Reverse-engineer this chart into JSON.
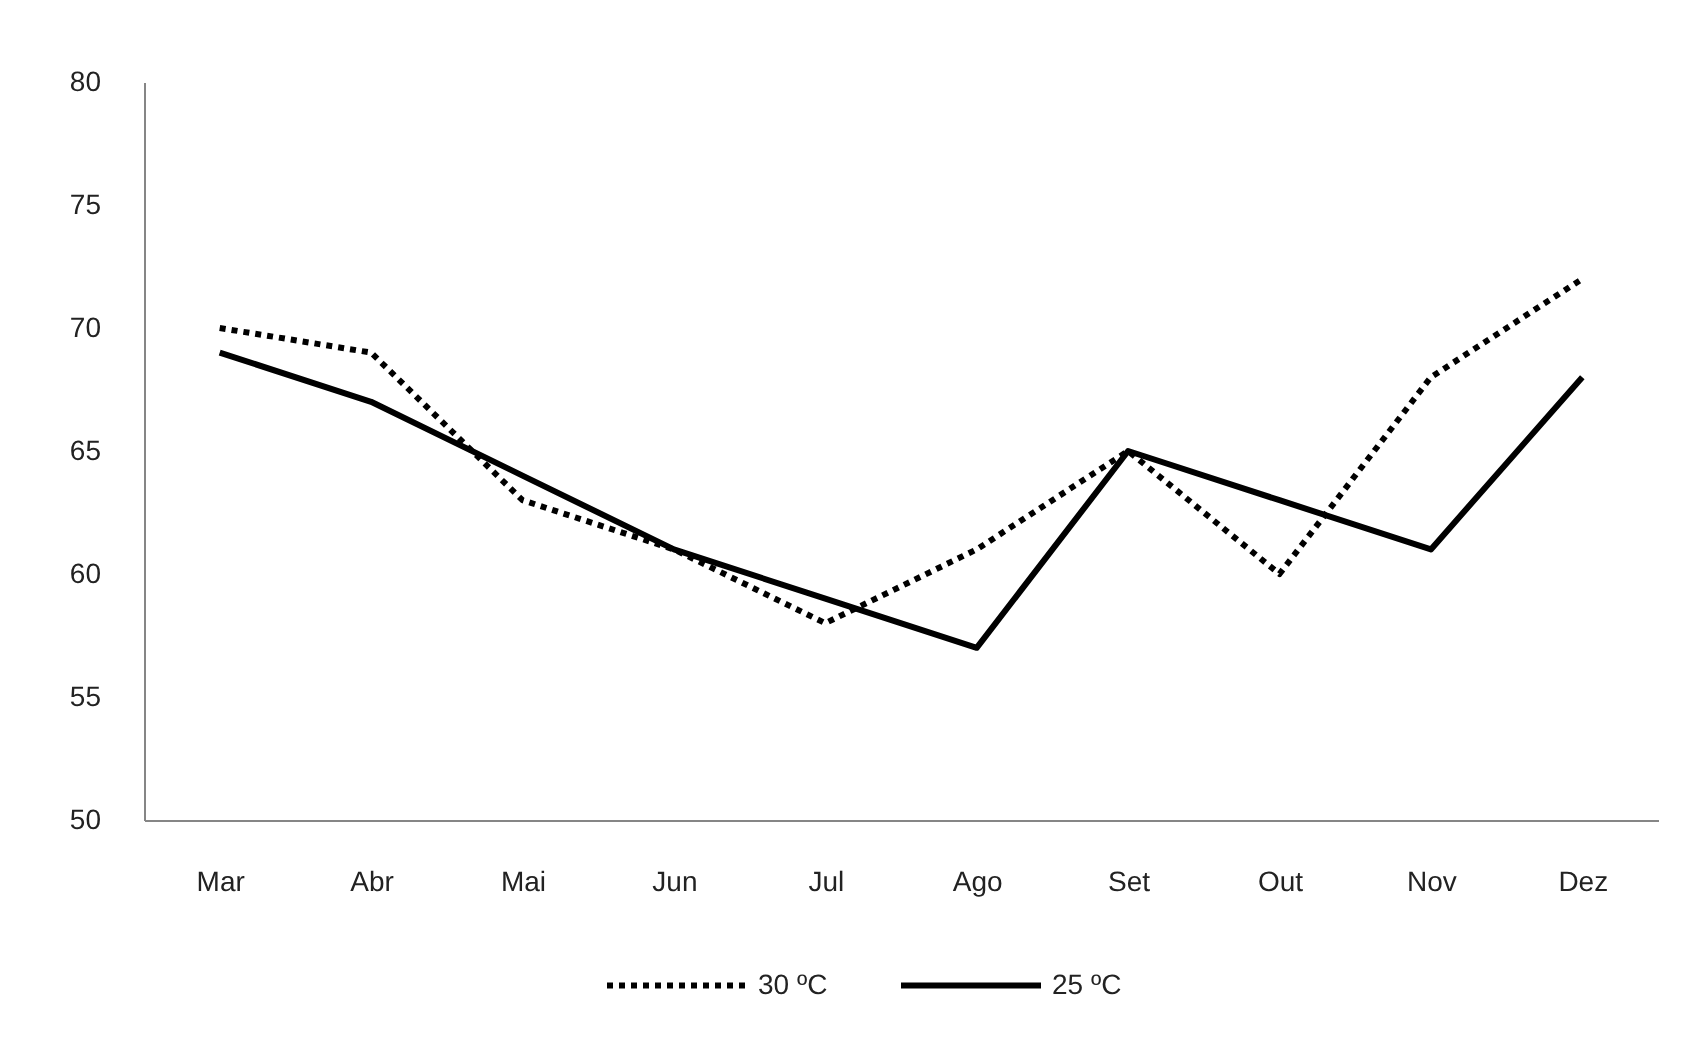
{
  "chart_data": {
    "type": "line",
    "categories": [
      "Mar",
      "Abr",
      "Mai",
      "Jun",
      "Jul",
      "Ago",
      "Set",
      "Out",
      "Nov",
      "Dez"
    ],
    "series": [
      {
        "name": "30 ºC",
        "color": "#000000",
        "line_style": "dotted",
        "values": [
          70,
          69,
          63,
          61,
          58,
          61,
          65,
          60,
          68,
          72
        ]
      },
      {
        "name": "25 ºC",
        "color": "#000000",
        "line_style": "solid",
        "values": [
          69,
          67,
          64,
          61,
          59,
          57,
          65,
          63,
          61,
          68
        ]
      }
    ],
    "ylim": [
      50,
      80
    ],
    "yticks": [
      50,
      55,
      60,
      65,
      70,
      75,
      80
    ],
    "grid": false,
    "legend": "bottom"
  }
}
